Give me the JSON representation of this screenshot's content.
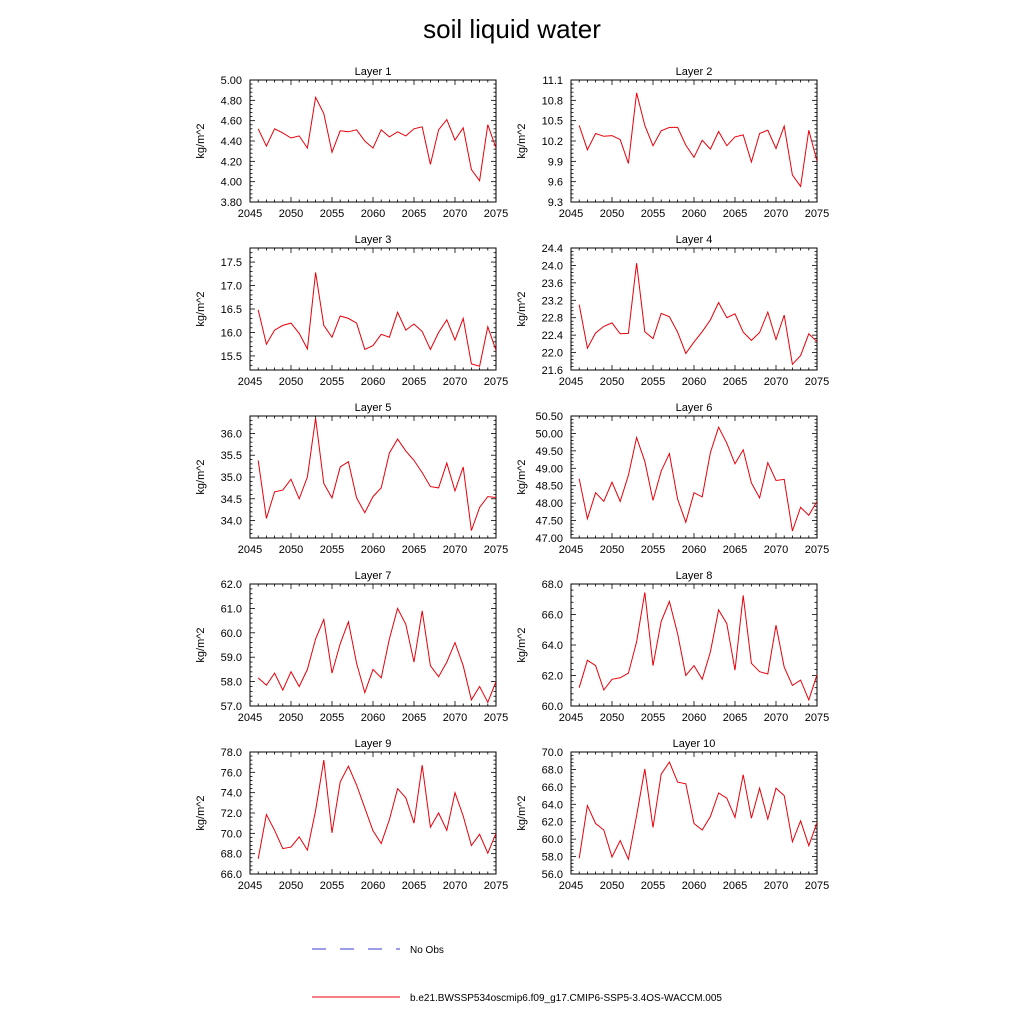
{
  "title": "soil liquid water",
  "colors": {
    "model_line": "#e8000b",
    "obs_line": "#3b3bd6",
    "axis": "#000000"
  },
  "legend": {
    "obs_label": "No Obs",
    "model_label": "b.e21.BWSSP534oscmip6.f09_g17.CMIP6-SSP5-3.4OS-WACCM.005"
  },
  "chart_data": [
    {
      "type": "line",
      "title": "Layer 1",
      "xlabel": "",
      "ylabel": "kg/m^2",
      "xlim": [
        2045,
        2075
      ],
      "ylim": [
        3.8,
        5.0
      ],
      "x_ticks": [
        "2045",
        "2050",
        "2055",
        "2060",
        "2065",
        "2070",
        "2075"
      ],
      "y_ticks": [
        "3.80",
        "4.00",
        "4.20",
        "4.40",
        "4.60",
        "4.80",
        "5.00"
      ],
      "series": [
        {
          "x": [
            2046,
            2047,
            2048,
            2049,
            2050,
            2051,
            2052,
            2053,
            2054,
            2055,
            2056,
            2057,
            2058,
            2059,
            2060,
            2061,
            2062,
            2063,
            2064,
            2065,
            2066,
            2067,
            2068,
            2069,
            2070,
            2071,
            2072,
            2073,
            2074,
            2075
          ],
          "values": [
            4.52,
            4.35,
            4.52,
            4.48,
            4.43,
            4.45,
            4.33,
            4.83,
            4.67,
            4.29,
            4.5,
            4.49,
            4.51,
            4.4,
            4.33,
            4.51,
            4.44,
            4.49,
            4.45,
            4.52,
            4.54,
            4.17,
            4.51,
            4.61,
            4.41,
            4.53,
            4.12,
            4.01,
            4.56,
            4.33
          ]
        }
      ]
    },
    {
      "type": "line",
      "title": "Layer 2",
      "xlabel": "",
      "ylabel": "kg/m^2",
      "xlim": [
        2045,
        2075
      ],
      "ylim": [
        9.3,
        11.1
      ],
      "x_ticks": [
        "2045",
        "2050",
        "2055",
        "2060",
        "2065",
        "2070",
        "2075"
      ],
      "y_ticks": [
        "9.3",
        "9.6",
        "9.9",
        "10.2",
        "10.5",
        "10.8",
        "11.1"
      ],
      "series": [
        {
          "x": [
            2046,
            2047,
            2048,
            2049,
            2050,
            2051,
            2052,
            2053,
            2054,
            2055,
            2056,
            2057,
            2058,
            2059,
            2060,
            2061,
            2062,
            2063,
            2064,
            2065,
            2066,
            2067,
            2068,
            2069,
            2070,
            2071,
            2072,
            2073,
            2074,
            2075
          ],
          "values": [
            10.43,
            10.07,
            10.31,
            10.27,
            10.28,
            10.22,
            9.87,
            10.91,
            10.43,
            10.13,
            10.35,
            10.4,
            10.4,
            10.14,
            9.96,
            10.21,
            10.08,
            10.34,
            10.13,
            10.26,
            10.29,
            9.89,
            10.31,
            10.36,
            10.09,
            10.42,
            9.7,
            9.53,
            10.36,
            9.9
          ]
        }
      ]
    },
    {
      "type": "line",
      "title": "Layer 3",
      "xlabel": "",
      "ylabel": "kg/m^2",
      "xlim": [
        2045,
        2075
      ],
      "ylim": [
        15.2,
        17.8
      ],
      "x_ticks": [
        "2045",
        "2050",
        "2055",
        "2060",
        "2065",
        "2070",
        "2075"
      ],
      "y_ticks": [
        "15.5",
        "16.0",
        "16.5",
        "17.0",
        "17.5"
      ],
      "series": [
        {
          "x": [
            2046,
            2047,
            2048,
            2049,
            2050,
            2051,
            2052,
            2053,
            2054,
            2055,
            2056,
            2057,
            2058,
            2059,
            2060,
            2061,
            2062,
            2063,
            2064,
            2065,
            2066,
            2067,
            2068,
            2069,
            2070,
            2071,
            2072,
            2073,
            2074,
            2075
          ],
          "values": [
            16.48,
            15.75,
            16.05,
            16.15,
            16.2,
            15.98,
            15.65,
            17.28,
            16.15,
            15.9,
            16.35,
            16.3,
            16.2,
            15.64,
            15.72,
            15.96,
            15.9,
            16.43,
            16.05,
            16.18,
            16.02,
            15.64,
            16.0,
            16.27,
            15.84,
            16.3,
            15.33,
            15.28,
            16.12,
            15.62
          ]
        }
      ]
    },
    {
      "type": "line",
      "title": "Layer 4",
      "xlabel": "",
      "ylabel": "kg/m^2",
      "xlim": [
        2045,
        2075
      ],
      "ylim": [
        21.6,
        24.4
      ],
      "x_ticks": [
        "2045",
        "2050",
        "2055",
        "2060",
        "2065",
        "2070",
        "2075"
      ],
      "y_ticks": [
        "21.6",
        "22.0",
        "22.4",
        "22.8",
        "23.2",
        "23.6",
        "24.0",
        "24.4"
      ],
      "series": [
        {
          "x": [
            2046,
            2047,
            2048,
            2049,
            2050,
            2051,
            2052,
            2053,
            2054,
            2055,
            2056,
            2057,
            2058,
            2059,
            2060,
            2061,
            2062,
            2063,
            2064,
            2065,
            2066,
            2067,
            2068,
            2069,
            2070,
            2071,
            2072,
            2073,
            2074,
            2075
          ],
          "values": [
            23.1,
            22.1,
            22.45,
            22.6,
            22.68,
            22.43,
            22.44,
            24.05,
            22.48,
            22.32,
            22.9,
            22.82,
            22.47,
            21.98,
            22.24,
            22.48,
            22.75,
            23.15,
            22.8,
            22.89,
            22.47,
            22.28,
            22.46,
            22.93,
            22.3,
            22.86,
            21.73,
            21.93,
            22.43,
            22.25
          ]
        }
      ]
    },
    {
      "type": "line",
      "title": "Layer 5",
      "xlabel": "",
      "ylabel": "kg/m^2",
      "xlim": [
        2045,
        2075
      ],
      "ylim": [
        33.6,
        36.4
      ],
      "x_ticks": [
        "2045",
        "2050",
        "2055",
        "2060",
        "2065",
        "2070",
        "2075"
      ],
      "y_ticks": [
        "34.0",
        "34.5",
        "35.0",
        "35.5",
        "36.0"
      ],
      "series": [
        {
          "x": [
            2046,
            2047,
            2048,
            2049,
            2050,
            2051,
            2052,
            2053,
            2054,
            2055,
            2056,
            2057,
            2058,
            2059,
            2060,
            2061,
            2062,
            2063,
            2064,
            2065,
            2066,
            2067,
            2068,
            2069,
            2070,
            2071,
            2072,
            2073,
            2074,
            2075
          ],
          "values": [
            35.38,
            34.05,
            34.66,
            34.7,
            34.95,
            34.5,
            35.0,
            36.35,
            34.85,
            34.52,
            35.23,
            35.35,
            34.52,
            34.18,
            34.55,
            34.75,
            35.55,
            35.87,
            35.6,
            35.38,
            35.1,
            34.78,
            34.75,
            35.32,
            34.68,
            35.23,
            33.77,
            34.3,
            34.55,
            34.53
          ]
        }
      ]
    },
    {
      "type": "line",
      "title": "Layer 6",
      "xlabel": "",
      "ylabel": "kg/m^2",
      "xlim": [
        2045,
        2075
      ],
      "ylim": [
        47.0,
        50.5
      ],
      "x_ticks": [
        "2045",
        "2050",
        "2055",
        "2060",
        "2065",
        "2070",
        "2075"
      ],
      "y_ticks": [
        "47.00",
        "47.50",
        "48.00",
        "48.50",
        "49.00",
        "49.50",
        "50.00",
        "50.50"
      ],
      "series": [
        {
          "x": [
            2046,
            2047,
            2048,
            2049,
            2050,
            2051,
            2052,
            2053,
            2054,
            2055,
            2056,
            2057,
            2058,
            2059,
            2060,
            2061,
            2062,
            2063,
            2064,
            2065,
            2066,
            2067,
            2068,
            2069,
            2070,
            2071,
            2072,
            2073,
            2074,
            2075
          ],
          "values": [
            48.7,
            47.55,
            48.3,
            48.05,
            48.6,
            48.05,
            48.8,
            49.88,
            49.2,
            48.08,
            48.92,
            49.42,
            48.12,
            47.45,
            48.3,
            48.18,
            49.45,
            50.18,
            49.72,
            49.13,
            49.53,
            48.58,
            48.15,
            49.16,
            48.65,
            48.68,
            47.2,
            47.88,
            47.65,
            48.05
          ]
        }
      ]
    },
    {
      "type": "line",
      "title": "Layer 7",
      "xlabel": "",
      "ylabel": "kg/m^2",
      "xlim": [
        2045,
        2075
      ],
      "ylim": [
        57.0,
        62.0
      ],
      "x_ticks": [
        "2045",
        "2050",
        "2055",
        "2060",
        "2065",
        "2070",
        "2075"
      ],
      "y_ticks": [
        "57.0",
        "58.0",
        "59.0",
        "60.0",
        "61.0",
        "62.0"
      ],
      "series": [
        {
          "x": [
            2046,
            2047,
            2048,
            2049,
            2050,
            2051,
            2052,
            2053,
            2054,
            2055,
            2056,
            2057,
            2058,
            2059,
            2060,
            2061,
            2062,
            2063,
            2064,
            2065,
            2066,
            2067,
            2068,
            2069,
            2070,
            2071,
            2072,
            2073,
            2074,
            2075
          ],
          "values": [
            58.15,
            57.85,
            58.35,
            57.65,
            58.4,
            57.8,
            58.5,
            59.75,
            60.55,
            58.35,
            59.55,
            60.45,
            58.75,
            57.55,
            58.5,
            58.15,
            59.75,
            61.0,
            60.35,
            58.8,
            60.9,
            58.65,
            58.2,
            58.8,
            59.6,
            58.65,
            57.25,
            57.8,
            57.15,
            58.0
          ]
        }
      ]
    },
    {
      "type": "line",
      "title": "Layer 8",
      "xlabel": "",
      "ylabel": "kg/m^2",
      "xlim": [
        2045,
        2075
      ],
      "ylim": [
        60.0,
        68.0
      ],
      "x_ticks": [
        "2045",
        "2050",
        "2055",
        "2060",
        "2065",
        "2070",
        "2075"
      ],
      "y_ticks": [
        "60.0",
        "62.0",
        "64.0",
        "66.0",
        "68.0"
      ],
      "series": [
        {
          "x": [
            2046,
            2047,
            2048,
            2049,
            2050,
            2051,
            2052,
            2053,
            2054,
            2055,
            2056,
            2057,
            2058,
            2059,
            2060,
            2061,
            2062,
            2063,
            2064,
            2065,
            2066,
            2067,
            2068,
            2069,
            2070,
            2071,
            2072,
            2073,
            2074,
            2075
          ],
          "values": [
            61.2,
            63.0,
            62.65,
            61.05,
            61.75,
            61.85,
            62.15,
            64.2,
            67.45,
            62.65,
            65.55,
            66.85,
            64.75,
            62.0,
            62.65,
            61.75,
            63.55,
            66.3,
            65.4,
            62.35,
            67.25,
            62.8,
            62.25,
            62.1,
            65.3,
            62.55,
            61.35,
            61.7,
            60.4,
            62.05
          ]
        }
      ]
    },
    {
      "type": "line",
      "title": "Layer 9",
      "xlabel": "",
      "ylabel": "kg/m^2",
      "xlim": [
        2045,
        2075
      ],
      "ylim": [
        66.0,
        78.0
      ],
      "x_ticks": [
        "2045",
        "2050",
        "2055",
        "2060",
        "2065",
        "2070",
        "2075"
      ],
      "y_ticks": [
        "66.0",
        "68.0",
        "70.0",
        "72.0",
        "74.0",
        "76.0",
        "78.0"
      ],
      "series": [
        {
          "x": [
            2046,
            2047,
            2048,
            2049,
            2050,
            2051,
            2052,
            2053,
            2054,
            2055,
            2056,
            2057,
            2058,
            2059,
            2060,
            2061,
            2062,
            2063,
            2064,
            2065,
            2066,
            2067,
            2068,
            2069,
            2070,
            2071,
            2072,
            2073,
            2074,
            2075
          ],
          "values": [
            67.5,
            71.85,
            70.3,
            68.5,
            68.65,
            69.65,
            68.35,
            72.25,
            77.2,
            70.05,
            75.05,
            76.6,
            74.75,
            72.5,
            70.25,
            69.0,
            71.35,
            74.4,
            73.5,
            71.0,
            76.7,
            70.6,
            72.0,
            70.3,
            74.0,
            71.7,
            68.8,
            69.9,
            68.05,
            70.0
          ]
        }
      ]
    },
    {
      "type": "line",
      "title": "Layer 10",
      "xlabel": "",
      "ylabel": "kg/m^2",
      "xlim": [
        2045,
        2075
      ],
      "ylim": [
        56.0,
        70.0
      ],
      "x_ticks": [
        "2045",
        "2050",
        "2055",
        "2060",
        "2065",
        "2070",
        "2075"
      ],
      "y_ticks": [
        "56.0",
        "58.0",
        "60.0",
        "62.0",
        "64.0",
        "66.0",
        "68.0",
        "70.0"
      ],
      "series": [
        {
          "x": [
            2046,
            2047,
            2048,
            2049,
            2050,
            2051,
            2052,
            2053,
            2054,
            2055,
            2056,
            2057,
            2058,
            2059,
            2060,
            2061,
            2062,
            2063,
            2064,
            2065,
            2066,
            2067,
            2068,
            2069,
            2070,
            2071,
            2072,
            2073,
            2074,
            2075
          ],
          "values": [
            57.8,
            63.85,
            61.8,
            61.05,
            57.95,
            59.85,
            57.7,
            62.7,
            68.05,
            61.35,
            67.45,
            68.85,
            66.55,
            66.35,
            61.8,
            61.05,
            62.6,
            65.3,
            64.7,
            62.5,
            67.4,
            62.4,
            65.85,
            62.3,
            65.85,
            65.0,
            59.7,
            62.1,
            59.25,
            61.9
          ]
        }
      ]
    }
  ]
}
